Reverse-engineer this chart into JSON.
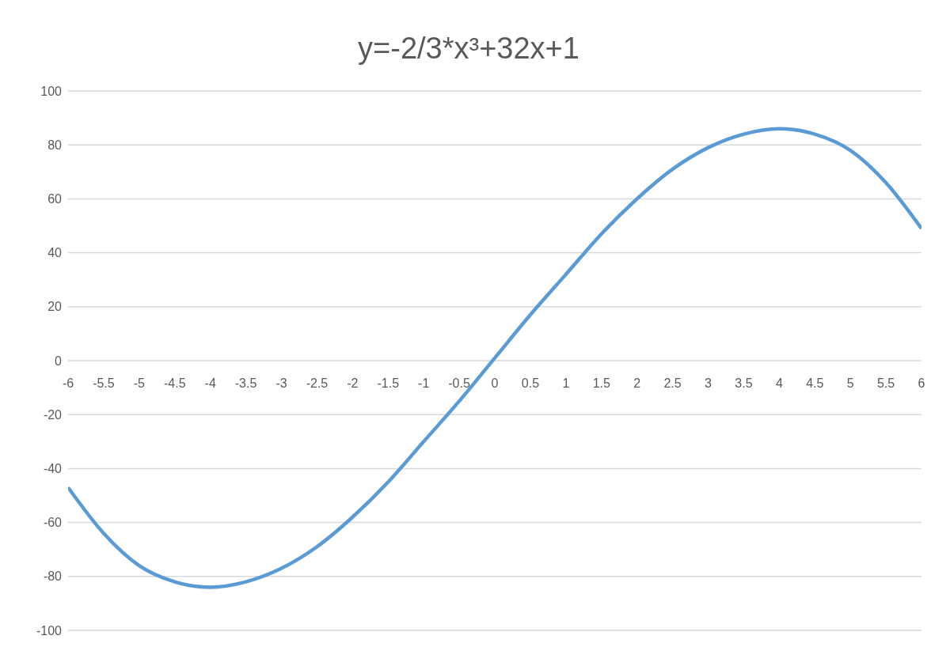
{
  "chart_data": {
    "type": "line",
    "title": "y=-2/3*x³+32x+1",
    "x": [
      -6,
      -5.5,
      -5,
      -4.5,
      -4,
      -3.5,
      -3,
      -2.5,
      -2,
      -1.5,
      -1,
      -0.5,
      0,
      0.5,
      1,
      1.5,
      2,
      2.5,
      3,
      3.5,
      4,
      4.5,
      5,
      5.5,
      6
    ],
    "series": [
      {
        "color": "#5b9bd5",
        "values": [
          -47,
          -64,
          -76,
          -82,
          -84,
          -82,
          -77,
          -69,
          -58,
          -45,
          -30,
          -15,
          1,
          17,
          32,
          47,
          60,
          71,
          79,
          84,
          86,
          84,
          78,
          66,
          49
        ]
      }
    ],
    "xlim": [
      -6,
      6
    ],
    "xticks": [
      -6,
      -5.5,
      -5,
      -4.5,
      -4,
      -3.5,
      -3,
      -2.5,
      -2,
      -1.5,
      -1,
      -0.5,
      0,
      0.5,
      1,
      1.5,
      2,
      2.5,
      3,
      3.5,
      4,
      4.5,
      5,
      5.5,
      6
    ],
    "ylim": [
      -100,
      100
    ],
    "yticks": [
      -100,
      -80,
      -60,
      -40,
      -20,
      0,
      20,
      40,
      60,
      80,
      100
    ],
    "grid": "y",
    "marker": "none",
    "line_style": "solid",
    "legend": false
  }
}
